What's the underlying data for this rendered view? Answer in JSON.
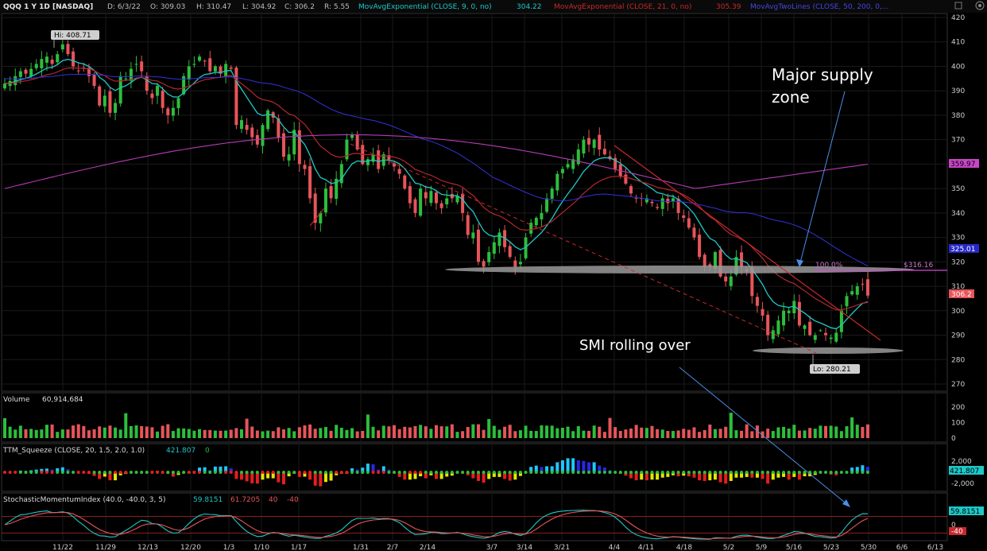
{
  "header": {
    "symbol": "QQQ 1 Y 1D [NASDAQ]",
    "date": "D: 6/3/22",
    "open": "O: 309.03",
    "high": "H: 310.47",
    "low": "L: 304.92",
    "close": "C: 306.2",
    "range": "R: 5.55",
    "studies": [
      {
        "label": "MovAvgExponential (CLOSE, 9, 0, no)",
        "value": "304.22",
        "color": "#1ec8c8"
      },
      {
        "label": "MovAvgExponential (CLOSE, 21, 0, no)",
        "value": "305.39",
        "color": "#c8282d"
      },
      {
        "label": "MovAvgTwoLines (CLOSE, 50, 200, 0,...",
        "value": "",
        "color": "#4646e6"
      }
    ]
  },
  "colors": {
    "up": "#2dbe3c",
    "down": "#e6555a",
    "ema9": "#1ec8c8",
    "ema21": "#b4282d",
    "sma50": "#3232dc",
    "sma200": "#b43cb4",
    "grid": "#1a1a1a"
  },
  "chart_data": [
    {
      "type": "candlestick",
      "title": "QQQ 1 Y 1D [NASDAQ]",
      "ylim": [
        266,
        424
      ],
      "y_ticks": [
        "420",
        "410",
        "400",
        "390",
        "380",
        "370",
        "360",
        "350",
        "340",
        "330",
        "320",
        "310",
        "300",
        "290",
        "280",
        "270"
      ],
      "x_ticks": [
        "11/22",
        "11/29",
        "12/13",
        "12/20",
        "1/3",
        "1/10",
        "1/17",
        "1/31",
        "2/7",
        "2/14",
        "3/7",
        "3/14",
        "3/21",
        "4/4",
        "4/11",
        "4/18",
        "5/2",
        "5/9",
        "5/16",
        "5/23",
        "5/30",
        "6/6",
        "6/13"
      ],
      "close_approx": [
        393,
        394,
        396,
        398,
        397,
        399,
        401,
        403,
        404,
        401,
        405,
        409,
        405,
        400,
        398,
        399,
        396,
        392,
        384,
        388,
        381,
        385,
        396,
        395,
        399,
        401,
        398,
        390,
        387,
        392,
        383,
        380,
        383,
        387,
        396,
        400,
        401,
        404,
        402,
        398,
        400,
        397,
        401,
        399,
        376,
        378,
        374,
        371,
        368,
        376,
        382,
        379,
        371,
        363,
        364,
        374,
        360,
        358,
        346,
        336,
        340,
        350,
        346,
        354,
        360,
        370,
        372,
        366,
        360,
        362,
        364,
        358,
        364,
        362,
        359,
        356,
        350,
        344,
        340,
        350,
        346,
        349,
        344,
        342,
        346,
        346,
        347,
        340,
        331,
        332,
        320,
        318,
        324,
        328,
        332,
        326,
        322,
        318,
        320,
        330,
        336,
        338,
        340,
        346,
        350,
        356,
        358,
        360,
        362,
        366,
        370,
        368,
        370,
        366,
        364,
        362,
        358,
        355,
        352,
        348,
        346,
        346,
        346,
        344,
        342,
        346,
        344,
        346,
        340,
        338,
        334,
        330,
        322,
        318,
        318,
        324,
        314,
        312,
        314,
        322,
        318,
        316,
        306,
        302,
        298,
        290,
        292,
        296,
        300,
        300,
        304,
        294,
        294,
        290,
        290,
        292,
        290,
        289,
        291,
        300,
        306,
        308,
        310,
        311,
        306.2
      ],
      "ema9_last": 304.22,
      "ema21_last": 305.39,
      "sma50_last": 325.01,
      "sma200_last": 359.97,
      "labels": {
        "hi": "Hi: 408.71",
        "lo": "Lo: 280.21",
        "last": "306.2",
        "ma50": "325.01",
        "ma200": "359.97",
        "fib": "100.0%",
        "level": "$316.16"
      },
      "annotations": [
        "Major supply zone",
        "SMI rolling over"
      ]
    },
    {
      "type": "bar",
      "title": "Volume",
      "value": "60,914,684",
      "y_ticks": [
        "200",
        "100",
        "0"
      ],
      "ylim": [
        0,
        230
      ]
    },
    {
      "type": "histogram",
      "title": "TTM_Squeeze (CLOSE, 20, 1.5, 2.0, 1.0)",
      "value": "421.807",
      "value2": "0",
      "y_ticks": [
        "2,000",
        "-2,000"
      ],
      "last_label": "421.807",
      "ylim": [
        -3200,
        3200
      ]
    },
    {
      "type": "line",
      "title": "StochasticMomentumIndex (40.0, -40.0, 3, 5)",
      "values": [
        "59.8151",
        "61.7205",
        "40",
        "-40"
      ],
      "y_ticks": [
        "0"
      ],
      "last_label": "59.8151",
      "ob_label": "-40",
      "ylim": [
        -75,
        75
      ]
    }
  ]
}
